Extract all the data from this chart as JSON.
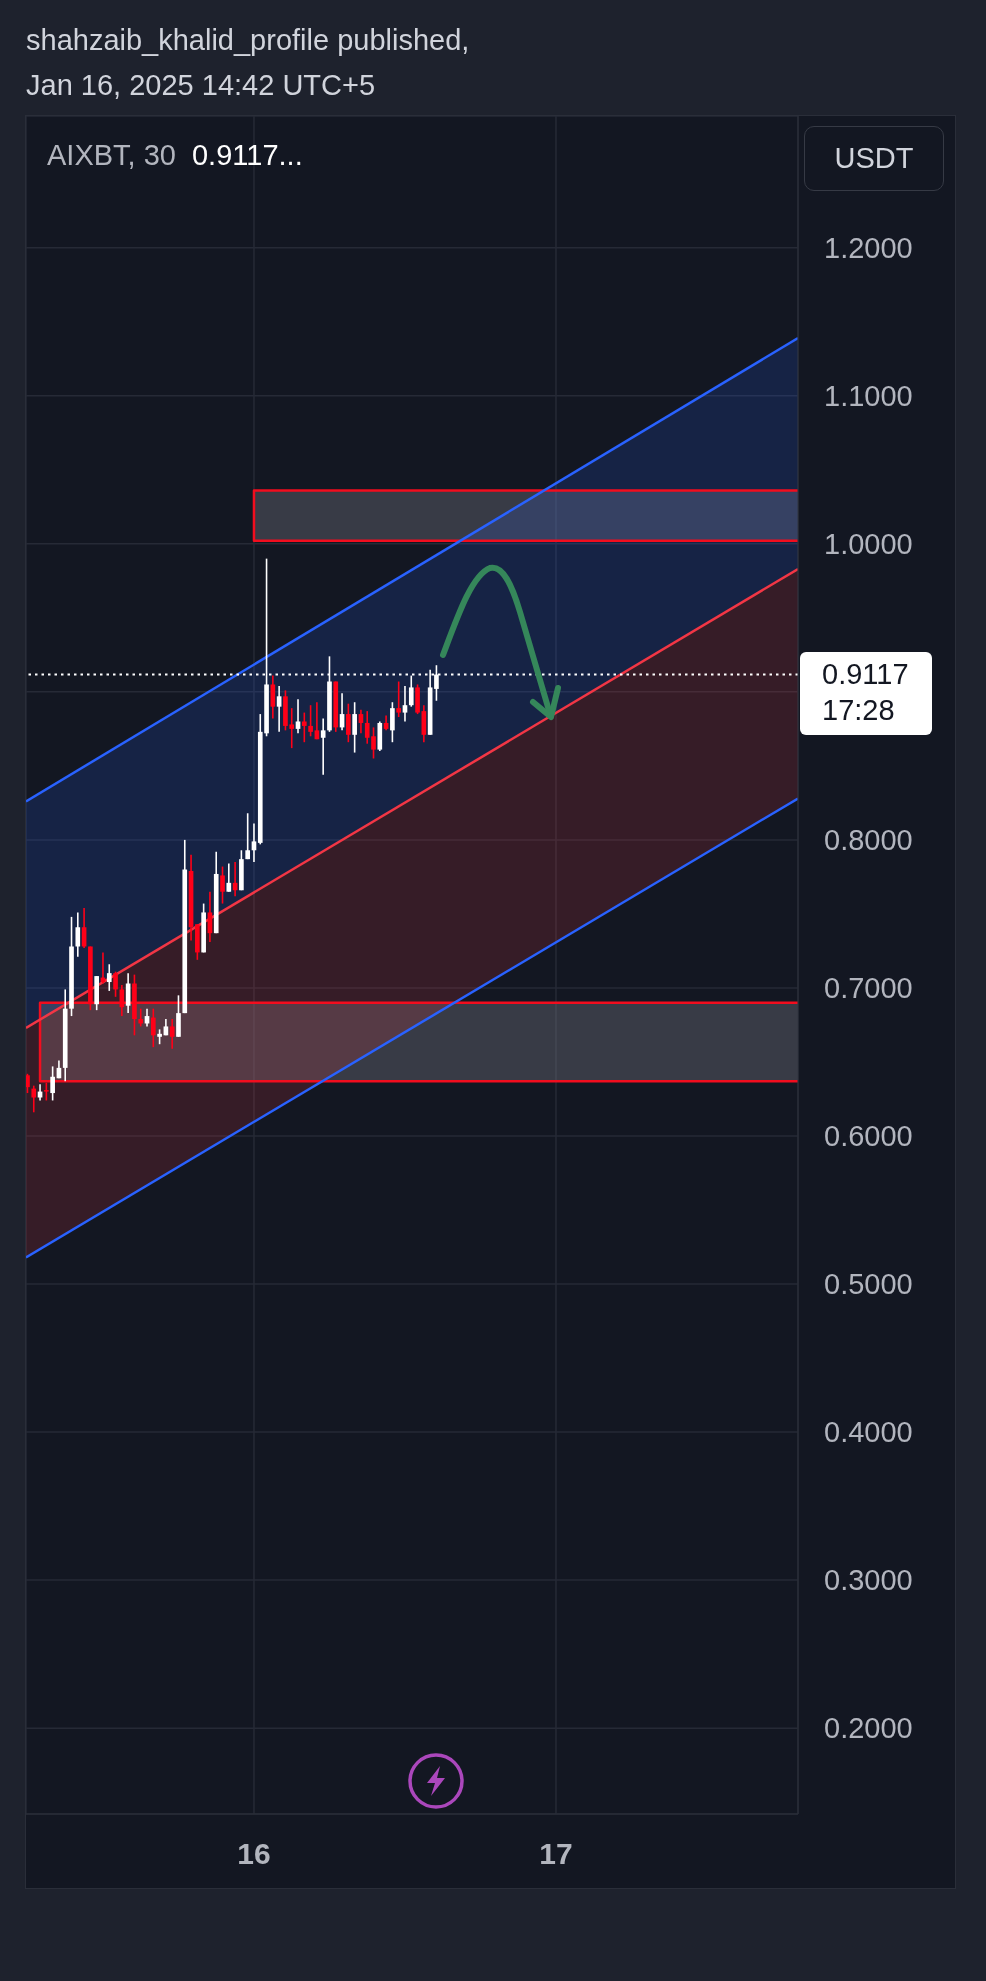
{
  "chart_data": {
    "type": "candlestick",
    "title": "AIXBT, 30",
    "subtitle": "0.9117...",
    "ylabel": "USDT",
    "annotations": [
      "shahzaib_khalid_profile published,",
      "Jan 16, 2025 14:42 UTC+5"
    ],
    "x": [
      "2025-01-15T06:00",
      "2025-01-15T06:30",
      "2025-01-15T07:00",
      "2025-01-15T07:30",
      "2025-01-15T08:00",
      "2025-01-15T08:30",
      "2025-01-15T09:00",
      "2025-01-15T09:30",
      "2025-01-15T10:00",
      "2025-01-15T10:30",
      "2025-01-15T11:00",
      "2025-01-15T11:30",
      "2025-01-15T12:00",
      "2025-01-15T12:30",
      "2025-01-15T13:00",
      "2025-01-15T13:30",
      "2025-01-15T14:00",
      "2025-01-15T14:30",
      "2025-01-15T15:00",
      "2025-01-15T15:30",
      "2025-01-15T16:00",
      "2025-01-15T16:30",
      "2025-01-15T17:00",
      "2025-01-15T17:30",
      "2025-01-15T18:00",
      "2025-01-15T18:30",
      "2025-01-15T19:00",
      "2025-01-15T19:30",
      "2025-01-15T20:00",
      "2025-01-15T20:30",
      "2025-01-15T21:00",
      "2025-01-15T21:30",
      "2025-01-15T22:00",
      "2025-01-15T22:30",
      "2025-01-15T23:00",
      "2025-01-15T23:30",
      "2025-01-16T00:00",
      "2025-01-16T00:30",
      "2025-01-16T01:00",
      "2025-01-16T01:30",
      "2025-01-16T02:00",
      "2025-01-16T02:30",
      "2025-01-16T03:00",
      "2025-01-16T03:30",
      "2025-01-16T04:00",
      "2025-01-16T04:30",
      "2025-01-16T05:00",
      "2025-01-16T05:30",
      "2025-01-16T06:00",
      "2025-01-16T06:30",
      "2025-01-16T07:00",
      "2025-01-16T07:30",
      "2025-01-16T08:00",
      "2025-01-16T08:30",
      "2025-01-16T09:00",
      "2025-01-16T09:30",
      "2025-01-16T10:00",
      "2025-01-16T10:30",
      "2025-01-16T11:00",
      "2025-01-16T11:30",
      "2025-01-16T12:00",
      "2025-01-16T12:30",
      "2025-01-16T13:00",
      "2025-01-16T13:30",
      "2025-01-16T14:00",
      "2025-01-16T14:30"
    ],
    "ohlc": [
      [
        0.641,
        0.642,
        0.629,
        0.633
      ],
      [
        0.632,
        0.634,
        0.616,
        0.626
      ],
      [
        0.626,
        0.635,
        0.624,
        0.63
      ],
      [
        0.631,
        0.636,
        0.624,
        0.63
      ],
      [
        0.629,
        0.647,
        0.624,
        0.64
      ],
      [
        0.639,
        0.651,
        0.639,
        0.646
      ],
      [
        0.646,
        0.699,
        0.637,
        0.686
      ],
      [
        0.686,
        0.748,
        0.681,
        0.728
      ],
      [
        0.728,
        0.751,
        0.721,
        0.741
      ],
      [
        0.741,
        0.754,
        0.727,
        0.728
      ],
      [
        0.728,
        0.728,
        0.685,
        0.689
      ],
      [
        0.689,
        0.708,
        0.685,
        0.708
      ],
      [
        0.707,
        0.724,
        0.703,
        0.704
      ],
      [
        0.704,
        0.716,
        0.698,
        0.71
      ],
      [
        0.71,
        0.711,
        0.694,
        0.699
      ],
      [
        0.699,
        0.702,
        0.681,
        0.687
      ],
      [
        0.688,
        0.71,
        0.683,
        0.703
      ],
      [
        0.703,
        0.709,
        0.668,
        0.679
      ],
      [
        0.679,
        0.686,
        0.674,
        0.676
      ],
      [
        0.676,
        0.686,
        0.674,
        0.681
      ],
      [
        0.68,
        0.686,
        0.66,
        0.668
      ],
      [
        0.667,
        0.672,
        0.662,
        0.669
      ],
      [
        0.668,
        0.679,
        0.668,
        0.674
      ],
      [
        0.674,
        0.679,
        0.659,
        0.667
      ],
      [
        0.667,
        0.695,
        0.667,
        0.683
      ],
      [
        0.683,
        0.8,
        0.683,
        0.78
      ],
      [
        0.779,
        0.79,
        0.732,
        0.741
      ],
      [
        0.743,
        0.743,
        0.719,
        0.724
      ],
      [
        0.724,
        0.757,
        0.724,
        0.751
      ],
      [
        0.751,
        0.765,
        0.731,
        0.737
      ],
      [
        0.737,
        0.792,
        0.737,
        0.777
      ],
      [
        0.776,
        0.782,
        0.757,
        0.765
      ],
      [
        0.765,
        0.784,
        0.765,
        0.771
      ],
      [
        0.771,
        0.785,
        0.762,
        0.766
      ],
      [
        0.766,
        0.793,
        0.766,
        0.787
      ],
      [
        0.787,
        0.818,
        0.787,
        0.793
      ],
      [
        0.793,
        0.811,
        0.785,
        0.799
      ],
      [
        0.798,
        0.885,
        0.797,
        0.873
      ],
      [
        0.872,
        0.99,
        0.87,
        0.905
      ],
      [
        0.905,
        0.911,
        0.882,
        0.89
      ],
      [
        0.89,
        0.904,
        0.873,
        0.897
      ],
      [
        0.897,
        0.901,
        0.874,
        0.877
      ],
      [
        0.878,
        0.889,
        0.862,
        0.875
      ],
      [
        0.875,
        0.895,
        0.872,
        0.88
      ],
      [
        0.88,
        0.886,
        0.866,
        0.877
      ],
      [
        0.877,
        0.891,
        0.87,
        0.873
      ],
      [
        0.874,
        0.893,
        0.868,
        0.868
      ],
      [
        0.869,
        0.882,
        0.844,
        0.874
      ],
      [
        0.874,
        0.924,
        0.873,
        0.907
      ],
      [
        0.907,
        0.907,
        0.873,
        0.876
      ],
      [
        0.876,
        0.899,
        0.874,
        0.885
      ],
      [
        0.885,
        0.892,
        0.866,
        0.871
      ],
      [
        0.871,
        0.893,
        0.859,
        0.885
      ],
      [
        0.885,
        0.888,
        0.872,
        0.879
      ],
      [
        0.879,
        0.887,
        0.865,
        0.869
      ],
      [
        0.87,
        0.876,
        0.855,
        0.861
      ],
      [
        0.861,
        0.88,
        0.86,
        0.879
      ],
      [
        0.879,
        0.884,
        0.874,
        0.875
      ],
      [
        0.874,
        0.893,
        0.866,
        0.889
      ],
      [
        0.889,
        0.907,
        0.883,
        0.886
      ],
      [
        0.886,
        0.904,
        0.88,
        0.891
      ],
      [
        0.891,
        0.911,
        0.89,
        0.903
      ],
      [
        0.903,
        0.905,
        0.885,
        0.886
      ],
      [
        0.887,
        0.891,
        0.866,
        0.871
      ],
      [
        0.871,
        0.915,
        0.871,
        0.903
      ],
      [
        0.902,
        0.918,
        0.894,
        0.9117
      ]
    ],
    "colors": [
      "#ff0018",
      "#ff0018",
      "#ffffff",
      "#ff0018",
      "#ffffff",
      "#ffffff",
      "#ffffff",
      "#ffffff",
      "#ffffff",
      "#ff0018",
      "#ff0018",
      "#ffffff",
      "#ff0018",
      "#ffffff",
      "#ff0018",
      "#ff0018",
      "#ffffff",
      "#ff0018",
      "#ff0018",
      "#ffffff",
      "#ff0018",
      "#ffffff",
      "#ffffff",
      "#ff0018",
      "#ffffff",
      "#ffffff",
      "#ff0018",
      "#ff0018",
      "#ffffff",
      "#ff0018",
      "#ffffff",
      "#ff0018",
      "#ffffff",
      "#ff0018",
      "#ffffff",
      "#ffffff",
      "#ffffff",
      "#ffffff",
      "#ffffff",
      "#ff0018",
      "#ffffff",
      "#ff0018",
      "#ff0018",
      "#ffffff",
      "#ff0018",
      "#ff0018",
      "#ff0018",
      "#ffffff",
      "#ffffff",
      "#ff0018",
      "#ffffff",
      "#ff0018",
      "#ffffff",
      "#ff0018",
      "#ff0018",
      "#ff0018",
      "#ffffff",
      "#ff0018",
      "#ffffff",
      "#ff0018",
      "#ffffff",
      "#ffffff",
      "#ff0018",
      "#ff0018",
      "#ffffff",
      "#ffffff"
    ],
    "series": [
      {
        "type": "line",
        "color": "#f20d1e",
        "x": [
          "2025-01-17T19:14",
          "2025-01-16T00:00",
          "2025-01-16T00:00",
          "2025-01-17T19:14"
        ],
        "values": [
          1.036,
          1.036,
          1.002,
          1.002
        ]
      },
      {
        "type": "line",
        "color": "#f20d1e",
        "x": [
          "2025-01-17T19:14",
          "2025-01-15T07:00",
          "2025-01-15T07:00",
          "2025-01-17T19:14"
        ],
        "values": [
          0.69,
          0.69,
          0.637,
          0.637
        ]
      },
      {
        "type": "line",
        "color": "#2962ff",
        "x": [
          "2025-01-15T05:53",
          "2025-01-17T19:14"
        ],
        "values": [
          0.826,
          1.139
        ],
        "lower": [
          0.673,
          0.983
        ],
        "upper": [
          0.826,
          1.139
        ]
      },
      {
        "type": "line",
        "color": "#f23645",
        "x": [
          "2025-01-15T05:53",
          "2025-01-17T19:14"
        ],
        "values": [
          0.673,
          0.983
        ],
        "lower": [
          0.518,
          0.828
        ],
        "upper": [
          0.673,
          0.983
        ]
      },
      {
        "type": "line",
        "color": "#2962ff",
        "x": [
          "2025-01-15T05:53",
          "2025-01-17T19:14"
        ],
        "values": [
          0.518,
          0.828
        ]
      }
    ],
    "ref_lines": [
      {
        "axis": "y",
        "value": 0.9117,
        "label": "0.9117\n17:28",
        "color": "#ffffff",
        "line_style": "dotted"
      }
    ],
    "xlim": [
      "2025-01-15T05:53",
      "2025-01-17T19:14"
    ],
    "xticks": [
      {
        "value": "2025-01-16T00:00",
        "label": "16"
      },
      {
        "value": "2025-01-17T00:00",
        "label": "17"
      }
    ],
    "ylim": [
      0.142,
      1.289
    ],
    "yticks": [
      {
        "value": 0.2,
        "label": "0.2000"
      },
      {
        "value": 0.3,
        "label": "0.3000"
      },
      {
        "value": 0.4,
        "label": "0.4000"
      },
      {
        "value": 0.5,
        "label": "0.5000"
      },
      {
        "value": 0.6,
        "label": "0.6000"
      },
      {
        "value": 0.7,
        "label": "0.7000"
      },
      {
        "value": 0.8,
        "label": "0.8000"
      },
      {
        "value": 0.9,
        "label": null
      },
      {
        "value": 1.0,
        "label": "1.0000"
      },
      {
        "value": 1.1,
        "label": "1.1000"
      },
      {
        "value": 1.2,
        "label": "1.2000"
      }
    ],
    "grid": true
  }
}
